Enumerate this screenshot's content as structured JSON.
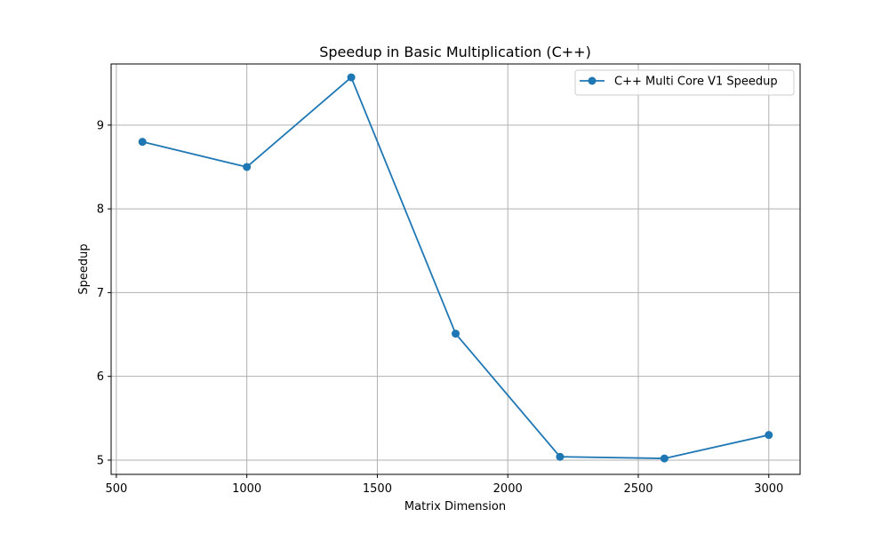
{
  "chart_data": {
    "type": "line",
    "title": "Speedup in Basic Multiplication (C++)",
    "xlabel": "Matrix Dimension",
    "ylabel": "Speedup",
    "xlim": [
      480,
      3120
    ],
    "ylim": [
      4.83,
      9.73
    ],
    "x_ticks": [
      500,
      1000,
      1500,
      2000,
      2500,
      3000
    ],
    "y_ticks": [
      5,
      6,
      7,
      8,
      9
    ],
    "grid": true,
    "legend_position": "top-right",
    "series": [
      {
        "name": "C++ Multi Core V1 Speedup",
        "color": "#1f77b4",
        "marker": "circle",
        "x": [
          600,
          1000,
          1400,
          1800,
          2200,
          2600,
          3000
        ],
        "y": [
          8.8,
          8.5,
          9.57,
          6.51,
          5.04,
          5.02,
          5.3
        ]
      }
    ]
  }
}
